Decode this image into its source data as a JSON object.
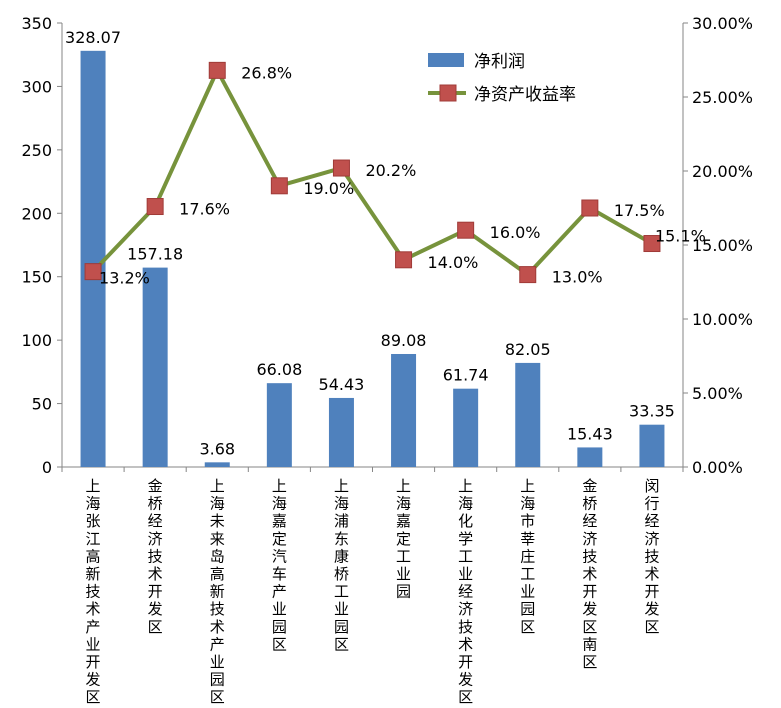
{
  "chart_data": {
    "type": "bar+line",
    "title": "",
    "categories": [
      "上海张江高新技术产业开发区",
      "金桥经济技术开发区",
      "上海未来岛高新技术产业园区",
      "上海嘉定汽车产业园区",
      "上海浦东康桥工业园区",
      "上海嘉定工业园",
      "上海化学工业经济技术开发区",
      "上海市莘庄工业园区",
      "金桥经济技术开发区南区",
      "闵行经济技术开发区"
    ],
    "series": [
      {
        "name": "净利润",
        "type": "bar",
        "axis": "left",
        "color": "#4F81BD",
        "values": [
          328.07,
          157.18,
          3.68,
          66.08,
          54.43,
          89.08,
          61.74,
          82.05,
          15.43,
          33.35
        ],
        "labels": [
          "328.07",
          "157.18",
          "3.68",
          "66.08",
          "54.43",
          "89.08",
          "61.74",
          "82.05",
          "15.43",
          "33.35"
        ]
      },
      {
        "name": "净资产收益率",
        "type": "line",
        "axis": "right",
        "color": "#77933C",
        "marker_color": "#C0504D",
        "values": [
          13.2,
          17.6,
          26.8,
          19.0,
          20.2,
          14.0,
          16.0,
          13.0,
          17.5,
          15.1
        ],
        "labels": [
          "13.2%",
          "17.6%",
          "26.8%",
          "19.0%",
          "20.2%",
          "14.0%",
          "16.0%",
          "13.0%",
          "17.5%",
          "15.1%"
        ]
      }
    ],
    "y_left": {
      "min": 0,
      "max": 350,
      "ticks": [
        "0",
        "50",
        "100",
        "150",
        "200",
        "250",
        "300",
        "350"
      ]
    },
    "y_right": {
      "min": 0,
      "max": 30,
      "ticks": [
        "0.00%",
        "5.00%",
        "10.00%",
        "15.00%",
        "20.00%",
        "25.00%",
        "30.00%"
      ]
    },
    "grid": false,
    "legend": "top-right"
  }
}
